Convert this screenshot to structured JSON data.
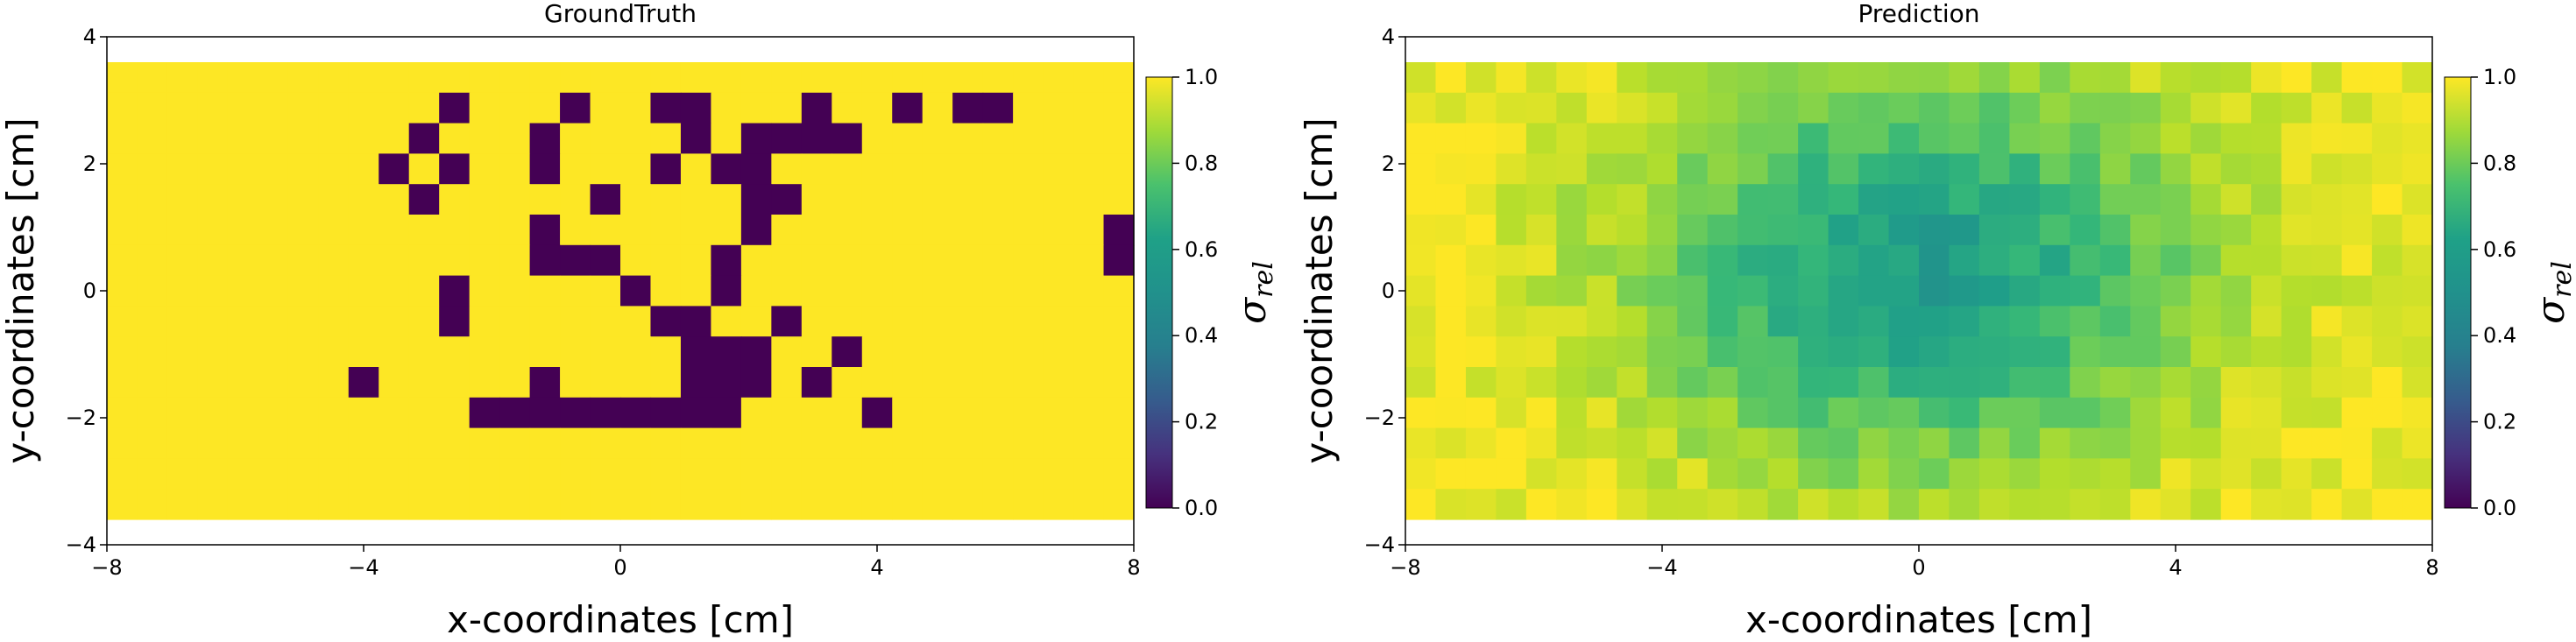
{
  "chart_data": [
    {
      "type": "heatmap",
      "title": "GroundTruth",
      "xlabel": "x-coordinates [cm]",
      "ylabel": "y-coordinates [cm]",
      "xlim": [
        -8,
        8
      ],
      "ylim": [
        -4,
        4
      ],
      "xticks": [
        "−8",
        "−4",
        "0",
        "4",
        "8"
      ],
      "yticks": [
        "−4",
        "−2",
        "0",
        "2",
        "4"
      ],
      "grid_x": [
        -8,
        8,
        34
      ],
      "grid_y": [
        -3.6,
        3.6,
        15
      ],
      "colorbar": {
        "label": "σ",
        "label_sub": "rel",
        "range": [
          0,
          1
        ],
        "ticks": [
          "0.0",
          "0.2",
          "0.4",
          "0.6",
          "0.8",
          "1.0"
        ],
        "colormap": "viridis"
      },
      "values_rows_top_to_bottom": [
        "1111111111111111111111111111111111",
        "1111111111101110110011101101001111",
        "1111111111011101111010000111111111",
        "1111111110101101110100111111111111",
        "1111111111011111011110011111111111",
        "1111111111111101111110111111111110",
        "1111111111111100011101111111111110",
        "1111111111101111101101111111111111",
        "1111111111101111110011011111111111",
        "1111111111111111111000110111111111",
        "1111111101111101111000101111111111",
        "1111111111110000000001111011111111",
        "1111111111111111111111111111111111",
        "1111111111111111111111111111111111",
        "1111111111111111111111111111111111"
      ]
    },
    {
      "type": "heatmap",
      "title": "Prediction",
      "xlabel": "x-coordinates [cm]",
      "ylabel": "y-coordinates [cm]",
      "xlim": [
        -8,
        8
      ],
      "ylim": [
        -4,
        4
      ],
      "xticks": [
        "−8",
        "−4",
        "0",
        "4",
        "8"
      ],
      "yticks": [
        "−4",
        "−2",
        "0",
        "2",
        "4"
      ],
      "grid_x": [
        -8,
        8,
        34
      ],
      "grid_y": [
        -3.6,
        3.6,
        15
      ],
      "colorbar": {
        "label": "σ",
        "label_sub": "rel",
        "range": [
          0,
          1
        ],
        "ticks": [
          "0.0",
          "0.2",
          "0.4",
          "0.6",
          "0.8",
          "1.0"
        ],
        "colormap": "viridis"
      },
      "center": [
        0.0,
        0.3
      ],
      "sigma": [
        3.2,
        2.3
      ],
      "min_value": 0.55,
      "max_value": 1.0
    }
  ]
}
